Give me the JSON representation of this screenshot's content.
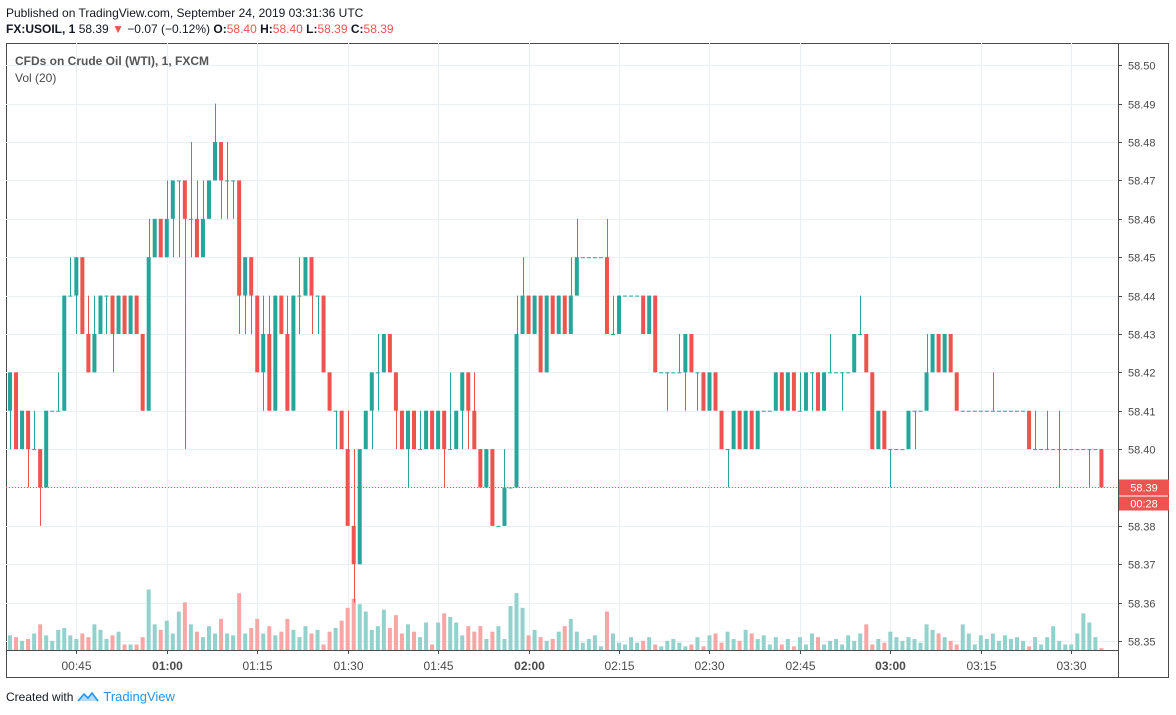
{
  "header": {
    "published": "Published on TradingView.com, September 24, 2019 03:31:36 UTC",
    "symbol": "FX:USOIL, 1",
    "last": "58.39",
    "change_arrow": "▼",
    "change": "−0.07 (−0.12%)",
    "o_label": "O:",
    "o_value": "58.40",
    "h_label": "H:",
    "h_value": "58.40",
    "l_label": "L:",
    "l_value": "58.39",
    "c_label": "C:",
    "c_value": "58.39"
  },
  "legend": {
    "title": "CFDs on Crude Oil (WTI), 1, FXCM",
    "indicator": "Vol (20)"
  },
  "footer": {
    "created_with": "Created with",
    "brand": "TradingView",
    "logo_icon": "tradingview-logo-icon"
  },
  "colors": {
    "up": "#26a69a",
    "down": "#ef5350",
    "vol_up": "#93d2cc",
    "vol_down": "#f5a6a5",
    "grid": "#e9eff3",
    "axis": "#4a4a4a",
    "last_price_bg": "#ef5350"
  },
  "price_label": {
    "value": "58.39",
    "countdown": "00:28"
  },
  "chart_data": {
    "type": "candlestick",
    "title": "CFDs on Crude Oil (WTI), 1, FXCM",
    "ylim": [
      58.345,
      58.505
    ],
    "y_ticks": [
      "58.35",
      "58.36",
      "58.37",
      "58.38",
      "58.39",
      "58.40",
      "58.41",
      "58.42",
      "58.43",
      "58.44",
      "58.45",
      "58.46",
      "58.47",
      "58.48",
      "58.49",
      "58.50"
    ],
    "x_ticks": [
      {
        "label": "00:45",
        "minute": 45,
        "bold": false
      },
      {
        "label": "01:00",
        "minute": 60,
        "bold": true
      },
      {
        "label": "01:15",
        "minute": 75,
        "bold": false
      },
      {
        "label": "01:30",
        "minute": 90,
        "bold": false
      },
      {
        "label": "01:45",
        "minute": 105,
        "bold": false
      },
      {
        "label": "02:00",
        "minute": 120,
        "bold": true
      },
      {
        "label": "02:15",
        "minute": 135,
        "bold": false
      },
      {
        "label": "02:30",
        "minute": 150,
        "bold": false
      },
      {
        "label": "02:45",
        "minute": 165,
        "bold": false
      },
      {
        "label": "03:00",
        "minute": 180,
        "bold": true
      },
      {
        "label": "03:15",
        "minute": 195,
        "bold": false
      },
      {
        "label": "03:30",
        "minute": 210,
        "bold": false
      }
    ],
    "first_bar_minute": 34,
    "grid": true,
    "volume_ylim": [
      0,
      60
    ],
    "bars": [
      [
        58.41,
        58.42,
        58.4,
        58.42,
        8
      ],
      [
        58.42,
        58.42,
        58.4,
        58.4,
        7
      ],
      [
        58.4,
        58.41,
        58.4,
        58.41,
        5
      ],
      [
        58.41,
        58.41,
        58.39,
        58.4,
        6
      ],
      [
        58.4,
        58.41,
        58.4,
        58.4,
        9
      ],
      [
        58.4,
        58.4,
        58.38,
        58.39,
        14
      ],
      [
        58.39,
        58.41,
        58.39,
        58.41,
        8
      ],
      [
        58.41,
        58.41,
        58.41,
        58.41,
        5
      ],
      [
        58.41,
        58.42,
        58.41,
        58.41,
        11
      ],
      [
        58.41,
        58.44,
        58.41,
        58.44,
        12
      ],
      [
        58.44,
        58.45,
        58.44,
        58.44,
        8
      ],
      [
        58.44,
        58.45,
        58.43,
        58.45,
        6
      ],
      [
        58.45,
        58.45,
        58.43,
        58.43,
        9
      ],
      [
        58.43,
        58.44,
        58.42,
        58.42,
        7
      ],
      [
        58.42,
        58.44,
        58.42,
        58.43,
        14
      ],
      [
        58.43,
        58.44,
        58.43,
        58.44,
        11
      ],
      [
        58.44,
        58.44,
        58.43,
        58.44,
        6
      ],
      [
        58.44,
        58.44,
        58.42,
        58.43,
        8
      ],
      [
        58.43,
        58.44,
        58.43,
        58.44,
        10
      ],
      [
        58.44,
        58.44,
        58.43,
        58.43,
        3
      ],
      [
        58.43,
        58.44,
        58.43,
        58.44,
        3
      ],
      [
        58.44,
        58.44,
        58.43,
        58.43,
        3
      ],
      [
        58.43,
        58.43,
        58.41,
        58.41,
        7
      ],
      [
        58.41,
        58.46,
        58.41,
        58.45,
        33
      ],
      [
        58.45,
        58.46,
        58.45,
        58.46,
        14
      ],
      [
        58.46,
        58.46,
        58.45,
        58.45,
        11
      ],
      [
        58.45,
        58.47,
        58.45,
        58.46,
        16
      ],
      [
        58.46,
        58.47,
        58.45,
        58.47,
        9
      ],
      [
        58.47,
        58.47,
        58.45,
        58.47,
        21
      ],
      [
        58.47,
        58.47,
        58.4,
        58.46,
        26
      ],
      [
        58.46,
        58.48,
        58.45,
        58.46,
        14
      ],
      [
        58.46,
        58.47,
        58.45,
        58.45,
        10
      ],
      [
        58.45,
        58.47,
        58.45,
        58.46,
        7
      ],
      [
        58.46,
        58.47,
        58.46,
        58.47,
        13
      ],
      [
        58.47,
        58.49,
        58.47,
        58.48,
        9
      ],
      [
        58.48,
        58.48,
        58.46,
        58.47,
        17
      ],
      [
        58.47,
        58.48,
        58.46,
        58.47,
        9
      ],
      [
        58.47,
        58.47,
        58.46,
        58.47,
        8
      ],
      [
        58.47,
        58.47,
        58.43,
        58.44,
        31
      ],
      [
        58.44,
        58.45,
        58.43,
        58.45,
        9
      ],
      [
        58.45,
        58.45,
        58.43,
        58.44,
        12
      ],
      [
        58.44,
        58.44,
        58.42,
        58.42,
        17
      ],
      [
        58.42,
        58.44,
        58.41,
        58.43,
        9
      ],
      [
        58.43,
        58.44,
        58.41,
        58.41,
        13
      ],
      [
        58.41,
        58.44,
        58.41,
        58.44,
        8
      ],
      [
        58.44,
        58.44,
        58.43,
        58.43,
        10
      ],
      [
        58.43,
        58.44,
        58.41,
        58.41,
        17
      ],
      [
        58.41,
        58.44,
        58.41,
        58.44,
        11
      ],
      [
        58.44,
        58.45,
        58.43,
        58.44,
        7
      ],
      [
        58.44,
        58.45,
        58.44,
        58.45,
        13
      ],
      [
        58.45,
        58.45,
        58.43,
        58.44,
        9
      ],
      [
        58.44,
        58.44,
        58.43,
        58.44,
        11
      ],
      [
        58.44,
        58.44,
        58.42,
        58.42,
        3
      ],
      [
        58.42,
        58.42,
        58.41,
        58.41,
        10
      ],
      [
        58.41,
        58.41,
        58.4,
        58.41,
        12
      ],
      [
        58.41,
        58.41,
        58.4,
        58.4,
        16
      ],
      [
        58.4,
        58.41,
        58.38,
        58.38,
        23
      ],
      [
        58.38,
        58.4,
        58.36,
        58.37,
        28
      ],
      [
        58.37,
        58.4,
        58.37,
        58.4,
        25
      ],
      [
        58.4,
        58.41,
        58.4,
        58.41,
        21
      ],
      [
        58.41,
        58.42,
        58.4,
        58.42,
        11
      ],
      [
        58.42,
        58.43,
        58.41,
        58.42,
        13
      ],
      [
        58.42,
        58.43,
        58.42,
        58.43,
        22
      ],
      [
        58.43,
        58.43,
        58.42,
        58.42,
        12
      ],
      [
        58.42,
        58.42,
        58.4,
        58.41,
        19
      ],
      [
        58.41,
        58.41,
        58.4,
        58.4,
        9
      ],
      [
        58.4,
        58.41,
        58.39,
        58.41,
        14
      ],
      [
        58.41,
        58.41,
        58.4,
        58.4,
        10
      ],
      [
        58.4,
        58.41,
        58.4,
        58.4,
        7
      ],
      [
        58.4,
        58.41,
        58.4,
        58.41,
        15
      ],
      [
        58.41,
        58.41,
        58.4,
        58.4,
        3
      ],
      [
        58.4,
        58.41,
        58.4,
        58.41,
        15
      ],
      [
        58.41,
        58.41,
        58.39,
        58.4,
        20
      ],
      [
        58.4,
        58.42,
        58.4,
        58.4,
        18
      ],
      [
        58.4,
        58.41,
        58.4,
        58.41,
        15
      ],
      [
        58.41,
        58.42,
        58.4,
        58.42,
        8
      ],
      [
        58.42,
        58.42,
        58.4,
        58.41,
        13
      ],
      [
        58.41,
        58.42,
        58.4,
        58.4,
        10
      ],
      [
        58.4,
        58.4,
        58.39,
        58.39,
        13
      ],
      [
        58.39,
        58.4,
        58.39,
        58.4,
        6
      ],
      [
        58.4,
        58.4,
        58.38,
        58.38,
        10
      ],
      [
        58.38,
        58.38,
        58.38,
        58.38,
        13
      ],
      [
        58.38,
        58.4,
        58.38,
        58.39,
        6
      ],
      [
        58.39,
        58.39,
        58.39,
        58.39,
        24
      ],
      [
        58.39,
        58.44,
        58.39,
        58.43,
        31
      ],
      [
        58.43,
        58.45,
        58.43,
        58.44,
        23
      ],
      [
        58.44,
        58.44,
        58.43,
        58.43,
        8
      ],
      [
        58.43,
        58.44,
        58.43,
        58.44,
        11
      ],
      [
        58.44,
        58.44,
        58.42,
        58.42,
        7
      ],
      [
        58.42,
        58.44,
        58.42,
        58.44,
        5
      ],
      [
        58.44,
        58.44,
        58.43,
        58.43,
        6
      ],
      [
        58.43,
        58.44,
        58.43,
        58.44,
        10
      ],
      [
        58.44,
        58.44,
        58.43,
        58.43,
        13
      ],
      [
        58.43,
        58.45,
        58.43,
        58.44,
        17
      ],
      [
        58.44,
        58.46,
        58.44,
        58.45,
        10
      ],
      [
        58.45,
        58.45,
        58.45,
        58.45,
        4
      ],
      [
        58.45,
        58.45,
        58.45,
        58.45,
        6
      ],
      [
        58.45,
        58.45,
        58.45,
        58.45,
        8
      ],
      [
        58.45,
        58.45,
        58.45,
        58.45,
        2
      ],
      [
        58.45,
        58.46,
        58.43,
        58.43,
        21
      ],
      [
        58.43,
        58.44,
        58.43,
        58.43,
        9
      ],
      [
        58.43,
        58.44,
        58.43,
        58.44,
        4
      ],
      [
        58.44,
        58.44,
        58.44,
        58.44,
        3
      ],
      [
        58.44,
        58.44,
        58.44,
        58.44,
        7
      ],
      [
        58.44,
        58.44,
        58.44,
        58.44,
        4
      ],
      [
        58.44,
        58.44,
        58.43,
        58.43,
        5
      ],
      [
        58.43,
        58.44,
        58.43,
        58.44,
        7
      ],
      [
        58.44,
        58.44,
        58.42,
        58.42,
        3
      ],
      [
        58.42,
        58.42,
        58.42,
        58.42,
        2
      ],
      [
        58.42,
        58.42,
        58.41,
        58.42,
        5
      ],
      [
        58.42,
        58.42,
        58.42,
        58.42,
        6
      ],
      [
        58.42,
        58.43,
        58.42,
        58.42,
        4
      ],
      [
        58.42,
        58.43,
        58.41,
        58.43,
        2
      ],
      [
        58.43,
        58.43,
        58.42,
        58.42,
        3
      ],
      [
        58.42,
        58.42,
        58.41,
        58.42,
        7
      ],
      [
        58.42,
        58.42,
        58.41,
        58.41,
        2
      ],
      [
        58.41,
        58.42,
        58.41,
        58.42,
        8
      ],
      [
        58.42,
        58.42,
        58.41,
        58.41,
        9
      ],
      [
        58.41,
        58.41,
        58.4,
        58.4,
        4
      ],
      [
        58.4,
        58.4,
        58.39,
        58.4,
        10
      ],
      [
        58.4,
        58.41,
        58.4,
        58.41,
        6
      ],
      [
        58.41,
        58.41,
        58.4,
        58.4,
        5
      ],
      [
        58.4,
        58.41,
        58.4,
        58.41,
        11
      ],
      [
        58.41,
        58.41,
        58.4,
        58.4,
        9
      ],
      [
        58.4,
        58.41,
        58.4,
        58.41,
        6
      ],
      [
        58.41,
        58.41,
        58.41,
        58.41,
        8
      ],
      [
        58.41,
        58.41,
        58.41,
        58.41,
        3
      ],
      [
        58.41,
        58.42,
        58.41,
        58.42,
        7
      ],
      [
        58.42,
        58.42,
        58.41,
        58.41,
        3
      ],
      [
        58.41,
        58.42,
        58.41,
        58.42,
        6
      ],
      [
        58.42,
        58.42,
        58.41,
        58.41,
        2
      ],
      [
        58.41,
        58.42,
        58.41,
        58.41,
        7
      ],
      [
        58.41,
        58.42,
        58.41,
        58.42,
        3
      ],
      [
        58.42,
        58.42,
        58.41,
        58.42,
        9
      ],
      [
        58.42,
        58.42,
        58.41,
        58.41,
        7
      ],
      [
        58.41,
        58.42,
        58.41,
        58.42,
        3
      ],
      [
        58.42,
        58.43,
        58.42,
        58.42,
        5
      ],
      [
        58.42,
        58.42,
        58.42,
        58.42,
        6
      ],
      [
        58.42,
        58.42,
        58.41,
        58.42,
        3
      ],
      [
        58.42,
        58.42,
        58.42,
        58.42,
        8
      ],
      [
        58.42,
        58.43,
        58.42,
        58.43,
        5
      ],
      [
        58.43,
        58.44,
        58.43,
        58.43,
        9
      ],
      [
        58.43,
        58.43,
        58.42,
        58.42,
        14
      ],
      [
        58.42,
        58.42,
        58.4,
        58.4,
        3
      ],
      [
        58.4,
        58.41,
        58.4,
        58.41,
        6
      ],
      [
        58.41,
        58.41,
        58.4,
        58.4,
        4
      ],
      [
        58.4,
        58.4,
        58.39,
        58.4,
        10
      ],
      [
        58.4,
        58.4,
        58.4,
        58.4,
        7
      ],
      [
        58.4,
        58.4,
        58.4,
        58.4,
        5
      ],
      [
        58.4,
        58.41,
        58.4,
        58.41,
        7
      ],
      [
        58.41,
        58.41,
        58.4,
        58.41,
        6
      ],
      [
        58.41,
        58.41,
        58.41,
        58.41,
        4
      ],
      [
        58.41,
        58.43,
        58.41,
        58.42,
        14
      ],
      [
        58.42,
        58.43,
        58.42,
        58.43,
        11
      ],
      [
        58.43,
        58.43,
        58.42,
        58.42,
        9
      ],
      [
        58.42,
        58.43,
        58.42,
        58.43,
        7
      ],
      [
        58.43,
        58.43,
        58.42,
        58.42,
        5
      ],
      [
        58.42,
        58.42,
        58.41,
        58.41,
        3
      ],
      [
        58.41,
        58.41,
        58.41,
        58.41,
        14
      ],
      [
        58.41,
        58.41,
        58.41,
        58.41,
        9
      ],
      [
        58.41,
        58.41,
        58.41,
        58.41,
        3
      ],
      [
        58.41,
        58.41,
        58.41,
        58.41,
        8
      ],
      [
        58.41,
        58.41,
        58.41,
        58.41,
        6
      ],
      [
        58.41,
        58.42,
        58.41,
        58.41,
        9
      ],
      [
        58.41,
        58.41,
        58.41,
        58.41,
        5
      ],
      [
        58.41,
        58.41,
        58.41,
        58.41,
        8
      ],
      [
        58.41,
        58.41,
        58.41,
        58.41,
        6
      ],
      [
        58.41,
        58.41,
        58.41,
        58.41,
        7
      ],
      [
        58.41,
        58.41,
        58.41,
        58.41,
        5
      ],
      [
        58.41,
        58.41,
        58.4,
        58.4,
        2
      ],
      [
        58.4,
        58.41,
        58.4,
        58.4,
        7
      ],
      [
        58.4,
        58.4,
        58.4,
        58.4,
        3
      ],
      [
        58.4,
        58.41,
        58.4,
        58.4,
        7
      ],
      [
        58.4,
        58.4,
        58.4,
        58.4,
        13
      ],
      [
        58.4,
        58.41,
        58.39,
        58.4,
        5
      ],
      [
        58.4,
        58.4,
        58.4,
        58.4,
        3
      ],
      [
        58.4,
        58.4,
        58.4,
        58.4,
        3
      ],
      [
        58.4,
        58.4,
        58.4,
        58.4,
        9
      ],
      [
        58.4,
        58.4,
        58.4,
        58.4,
        20
      ],
      [
        58.4,
        58.4,
        58.39,
        58.4,
        15
      ],
      [
        58.4,
        58.4,
        58.4,
        58.4,
        7
      ],
      [
        58.4,
        58.4,
        58.39,
        58.39,
        1
      ]
    ]
  }
}
